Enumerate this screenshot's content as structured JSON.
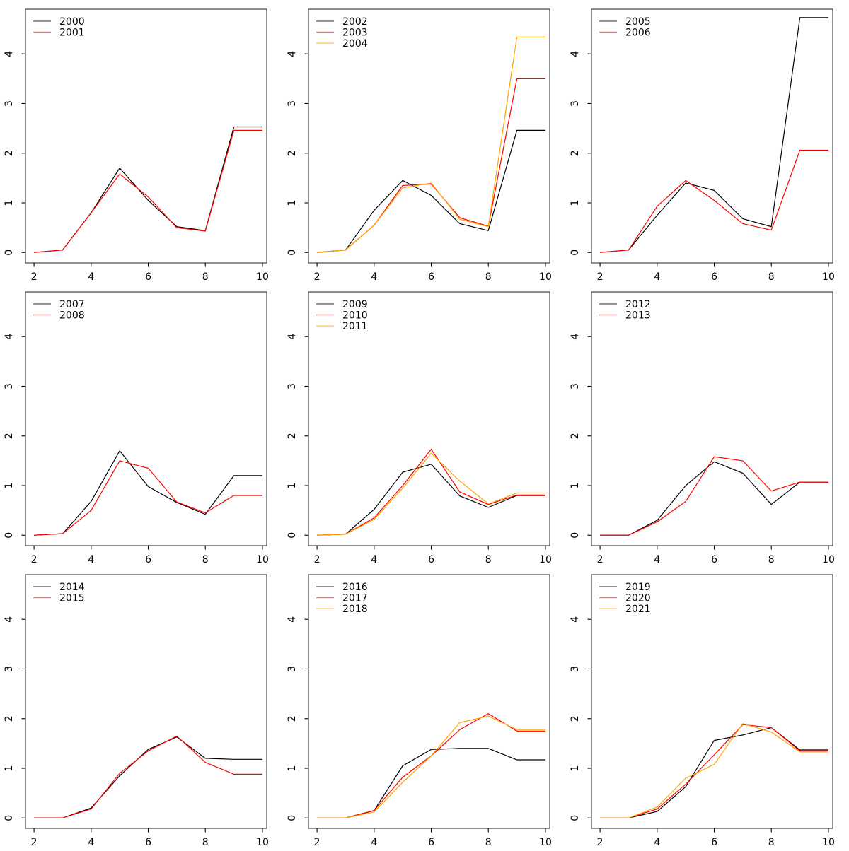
{
  "page": {
    "background": "#ffffff",
    "grid_rows": 3,
    "grid_cols": 3
  },
  "palette": {
    "series_black": "#000000",
    "series_red": "#ff0000",
    "series_orange": "#ffa500",
    "axis_color": "#333333",
    "text_color": "#000000"
  },
  "axes_defaults": {
    "x_ticks": [
      2,
      4,
      6,
      8,
      10
    ],
    "y_ticks": [
      0,
      1,
      2,
      3,
      4
    ],
    "xlim": [
      1.7,
      10.15
    ],
    "ylim": [
      -0.21,
      4.9
    ],
    "grid": false,
    "legend_position": "top-left",
    "xlabel": "",
    "ylabel": "",
    "title": ""
  },
  "chart_data": [
    {
      "type": "line",
      "x": [
        2,
        3,
        4,
        5,
        6,
        7,
        8,
        9,
        10
      ],
      "legend": [
        "2000",
        "2001"
      ],
      "series": [
        {
          "name": "2000",
          "color": "#000000",
          "values": [
            0,
            0.05,
            0.8,
            1.7,
            1.05,
            0.52,
            0.44,
            2.53,
            2.53
          ]
        },
        {
          "name": "2001",
          "color": "#ff0000",
          "values": [
            0,
            0.05,
            0.8,
            1.58,
            1.12,
            0.5,
            0.43,
            2.46,
            2.46
          ]
        }
      ]
    },
    {
      "type": "line",
      "x": [
        2,
        3,
        4,
        5,
        6,
        7,
        8,
        9,
        10
      ],
      "legend": [
        "2002",
        "2003",
        "2004"
      ],
      "series": [
        {
          "name": "2002",
          "color": "#000000",
          "values": [
            0,
            0.05,
            0.85,
            1.45,
            1.15,
            0.58,
            0.44,
            2.46,
            2.46
          ]
        },
        {
          "name": "2003",
          "color": "#ff0000",
          "values": [
            0,
            0.05,
            0.55,
            1.35,
            1.38,
            0.7,
            0.53,
            3.5,
            3.5
          ]
        },
        {
          "name": "2004",
          "color": "#ffa500",
          "values": [
            0,
            0.05,
            0.55,
            1.3,
            1.4,
            0.67,
            0.52,
            4.34,
            4.34
          ]
        }
      ]
    },
    {
      "type": "line",
      "x": [
        2,
        3,
        4,
        5,
        6,
        7,
        8,
        9,
        10
      ],
      "legend": [
        "2005",
        "2006"
      ],
      "series": [
        {
          "name": "2005",
          "color": "#000000",
          "values": [
            0,
            0.05,
            0.75,
            1.4,
            1.25,
            0.68,
            0.52,
            4.73,
            4.73
          ]
        },
        {
          "name": "2006",
          "color": "#ff0000",
          "values": [
            0,
            0.05,
            0.93,
            1.45,
            1.05,
            0.58,
            0.45,
            2.06,
            2.06
          ]
        }
      ]
    },
    {
      "type": "line",
      "x": [
        2,
        3,
        4,
        5,
        6,
        7,
        8,
        9,
        10
      ],
      "legend": [
        "2007",
        "2008"
      ],
      "series": [
        {
          "name": "2007",
          "color": "#000000",
          "values": [
            0,
            0.03,
            0.68,
            1.7,
            0.98,
            0.66,
            0.42,
            1.2,
            1.2
          ]
        },
        {
          "name": "2008",
          "color": "#ff0000",
          "values": [
            0,
            0.03,
            0.5,
            1.5,
            1.35,
            0.67,
            0.45,
            0.8,
            0.8
          ]
        }
      ]
    },
    {
      "type": "line",
      "x": [
        2,
        3,
        4,
        5,
        6,
        7,
        8,
        9,
        10
      ],
      "legend": [
        "2009",
        "2010",
        "2011"
      ],
      "series": [
        {
          "name": "2009",
          "color": "#000000",
          "values": [
            0,
            0.02,
            0.52,
            1.27,
            1.43,
            0.79,
            0.56,
            0.8,
            0.8
          ]
        },
        {
          "name": "2010",
          "color": "#ff0000",
          "values": [
            0,
            0.02,
            0.35,
            1.0,
            1.73,
            0.87,
            0.62,
            0.81,
            0.81
          ]
        },
        {
          "name": "2011",
          "color": "#ffa500",
          "values": [
            0,
            0.02,
            0.32,
            0.95,
            1.65,
            1.09,
            0.63,
            0.85,
            0.85
          ]
        }
      ]
    },
    {
      "type": "line",
      "x": [
        2,
        3,
        4,
        5,
        6,
        7,
        8,
        9,
        10
      ],
      "legend": [
        "2012",
        "2013"
      ],
      "series": [
        {
          "name": "2012",
          "color": "#000000",
          "values": [
            0,
            0.0,
            0.3,
            1.0,
            1.48,
            1.25,
            0.62,
            1.07,
            1.07
          ]
        },
        {
          "name": "2013",
          "color": "#ff0000",
          "values": [
            0,
            0.0,
            0.27,
            0.68,
            1.58,
            1.5,
            0.89,
            1.07,
            1.07
          ]
        }
      ]
    },
    {
      "type": "line",
      "x": [
        2,
        3,
        4,
        5,
        6,
        7,
        8,
        9,
        10
      ],
      "legend": [
        "2014",
        "2015"
      ],
      "series": [
        {
          "name": "2014",
          "color": "#000000",
          "values": [
            0,
            0.0,
            0.2,
            0.85,
            1.38,
            1.63,
            1.2,
            1.18,
            1.18
          ]
        },
        {
          "name": "2015",
          "color": "#ff0000",
          "values": [
            0,
            0.0,
            0.18,
            0.9,
            1.35,
            1.65,
            1.12,
            0.88,
            0.88
          ]
        }
      ]
    },
    {
      "type": "line",
      "x": [
        2,
        3,
        4,
        5,
        6,
        7,
        8,
        9,
        10
      ],
      "legend": [
        "2016",
        "2017",
        "2018"
      ],
      "series": [
        {
          "name": "2016",
          "color": "#000000",
          "values": [
            0,
            0.0,
            0.15,
            1.05,
            1.38,
            1.4,
            1.4,
            1.17,
            1.17
          ]
        },
        {
          "name": "2017",
          "color": "#ff0000",
          "values": [
            0,
            0.0,
            0.15,
            0.82,
            1.25,
            1.78,
            2.1,
            1.75,
            1.75
          ]
        },
        {
          "name": "2018",
          "color": "#ffa500",
          "values": [
            0,
            0.0,
            0.12,
            0.72,
            1.25,
            1.92,
            2.05,
            1.78,
            1.78
          ]
        }
      ]
    },
    {
      "type": "line",
      "x": [
        2,
        3,
        4,
        5,
        6,
        7,
        8,
        9,
        10
      ],
      "legend": [
        "2019",
        "2020",
        "2021"
      ],
      "series": [
        {
          "name": "2019",
          "color": "#000000",
          "values": [
            0,
            0.0,
            0.13,
            0.63,
            1.56,
            1.67,
            1.82,
            1.37,
            1.37
          ]
        },
        {
          "name": "2020",
          "color": "#ff0000",
          "values": [
            0,
            0.0,
            0.18,
            0.68,
            1.27,
            1.88,
            1.82,
            1.35,
            1.35
          ]
        },
        {
          "name": "2021",
          "color": "#ffa500",
          "values": [
            0,
            0.0,
            0.22,
            0.8,
            1.08,
            1.9,
            1.73,
            1.33,
            1.33
          ]
        }
      ]
    }
  ]
}
